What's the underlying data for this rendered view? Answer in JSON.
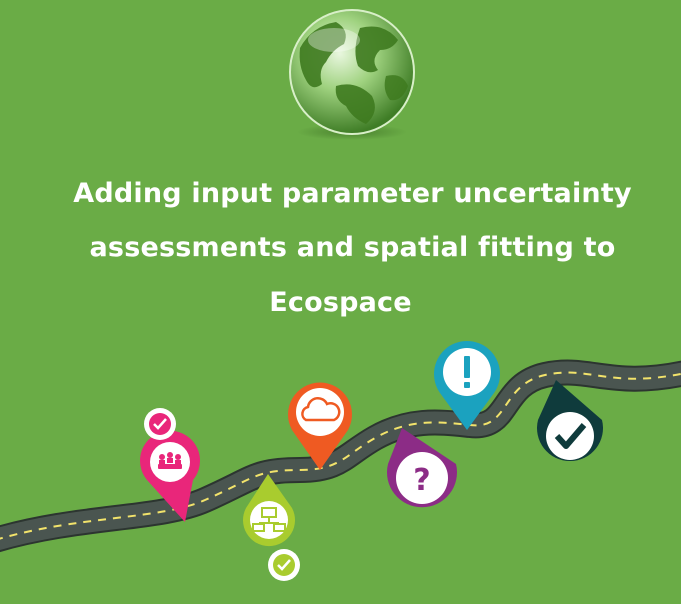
{
  "title": {
    "line1": "Adding input parameter uncertainty",
    "line2": "assessments and spatial fitting to",
    "line3": "Ecospace"
  },
  "colors": {
    "background": "#6aac46",
    "road": "#303a33",
    "pin_pink": "#e9267a",
    "pin_lime": "#a9cc2e",
    "pin_orange": "#ef5a22",
    "pin_purple": "#8c2c86",
    "pin_teal": "#1ba2bf",
    "pin_darkteal": "#0f3b3c"
  },
  "markers": [
    {
      "name": "meeting",
      "icon": "meeting-people-icon",
      "badge": "check-icon"
    },
    {
      "name": "network",
      "icon": "network-icon",
      "badge": "check-icon"
    },
    {
      "name": "cloud",
      "icon": "cloud-icon"
    },
    {
      "name": "question",
      "icon": "question-mark-icon"
    },
    {
      "name": "alert",
      "icon": "exclamation-icon"
    },
    {
      "name": "done",
      "icon": "checkmark-icon"
    }
  ]
}
